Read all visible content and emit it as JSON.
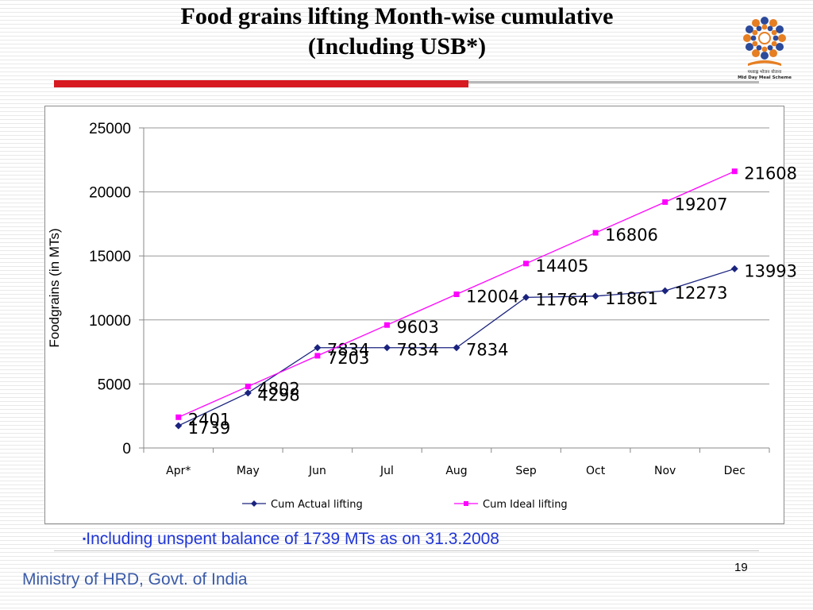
{
  "slide": {
    "title_line1": "Food grains lifting Month-wise cumulative",
    "title_line2": "(Including USB*)",
    "footnote_bullet": "▪",
    "footnote": "Including unspent balance of 1739 MTs as on 31.3.2008",
    "page_number": "19",
    "footer": "Ministry of HRD, Govt. of India",
    "logo": {
      "icon": "mid-day-meal-scheme-logo",
      "caption_hindi": "मध्याह्न भोजन योजना",
      "caption_english": "Mid Day Meal Scheme"
    }
  },
  "chart_data": {
    "type": "line",
    "categories": [
      "Apr*",
      "May",
      "Jun",
      "Jul",
      "Aug",
      "Sep",
      "Oct",
      "Nov",
      "Dec"
    ],
    "ylabel": "Foodgrains (in MTs)",
    "ylim": [
      0,
      25000
    ],
    "yticks": [
      0,
      5000,
      10000,
      15000,
      20000,
      25000
    ],
    "grid": "horizontal",
    "legend": "bottom",
    "series": [
      {
        "name": "Cum Actual lifting",
        "color": "#1a237e",
        "marker": "diamond",
        "values": [
          1739,
          4298,
          7834,
          7834,
          7834,
          11764,
          11861,
          12273,
          13993
        ],
        "labels": [
          "1739",
          "4298",
          "7834",
          "7834",
          "7834",
          "11764",
          "11861",
          "12273",
          "13993"
        ]
      },
      {
        "name": "Cum Ideal  lifting",
        "color": "#ff00ff",
        "marker": "square",
        "values": [
          2401,
          4802,
          7203,
          9603,
          12004,
          14405,
          16806,
          19207,
          21608
        ],
        "labels": [
          "2401",
          "4802",
          "7203",
          "9603",
          "12004",
          "14405",
          "16806",
          "19207",
          "21608"
        ]
      }
    ]
  }
}
